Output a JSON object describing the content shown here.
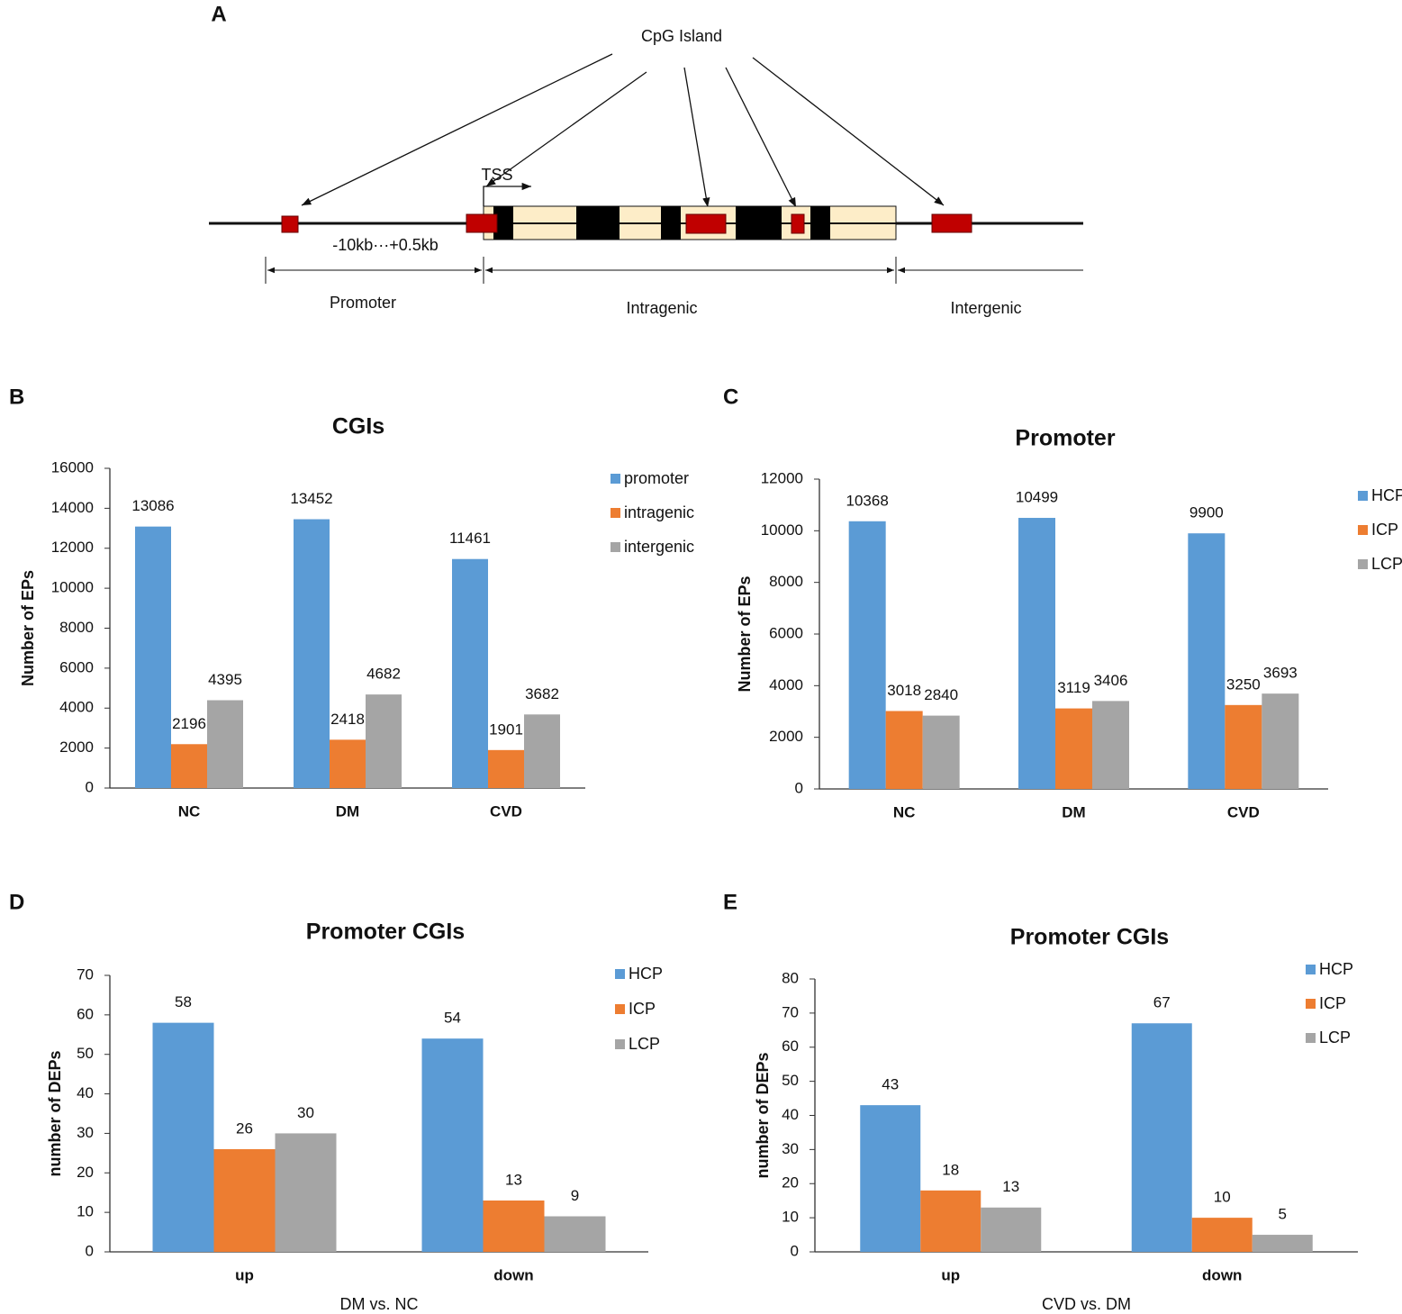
{
  "diagram": {
    "panel": "A",
    "cpg": "CpG Island",
    "tss": "TSS",
    "range": "-10kb···+0.5kb",
    "promoter": "Promoter",
    "intragenic": "Intragenic",
    "intergenic": "Intergenic"
  },
  "chart_data": [
    {
      "panel": "B",
      "type": "bar",
      "title": "CGIs",
      "ylabel": "Number of EPs",
      "categories": [
        "NC",
        "DM",
        "CVD"
      ],
      "series": [
        {
          "name": "promoter",
          "color": "#5b9bd5",
          "values": [
            13086,
            13452,
            11461
          ]
        },
        {
          "name": "intragenic",
          "color": "#ed7d31",
          "values": [
            2196,
            2418,
            1901
          ]
        },
        {
          "name": "intergenic",
          "color": "#a5a5a5",
          "values": [
            4395,
            4682,
            3682
          ]
        }
      ],
      "ylim": [
        0,
        16000
      ],
      "yticks": [
        0,
        2000,
        4000,
        6000,
        8000,
        10000,
        12000,
        14000,
        16000
      ],
      "legend": "right"
    },
    {
      "panel": "C",
      "type": "bar",
      "title": "Promoter",
      "ylabel": "Number of  EPs",
      "categories": [
        "NC",
        "DM",
        "CVD"
      ],
      "series": [
        {
          "name": "HCP",
          "color": "#5b9bd5",
          "values": [
            10368,
            10499,
            9900
          ]
        },
        {
          "name": "ICP",
          "color": "#ed7d31",
          "values": [
            3018,
            3119,
            3250
          ]
        },
        {
          "name": "LCP",
          "color": "#a5a5a5",
          "values": [
            2840,
            3406,
            3693
          ]
        }
      ],
      "ylim": [
        0,
        12000
      ],
      "yticks": [
        0,
        2000,
        4000,
        6000,
        8000,
        10000,
        12000
      ],
      "legend": "right"
    },
    {
      "panel": "D",
      "type": "bar",
      "title": "Promoter CGIs",
      "ylabel": "number of DEPs",
      "xlabel": "DM vs. NC",
      "categories": [
        "up",
        "down"
      ],
      "series": [
        {
          "name": "HCP",
          "color": "#5b9bd5",
          "values": [
            58,
            54
          ]
        },
        {
          "name": "ICP",
          "color": "#ed7d31",
          "values": [
            26,
            13
          ]
        },
        {
          "name": "LCP",
          "color": "#a5a5a5",
          "values": [
            30,
            9
          ]
        }
      ],
      "ylim": [
        0,
        70
      ],
      "yticks": [
        0,
        10,
        20,
        30,
        40,
        50,
        60,
        70
      ],
      "legend": "top right"
    },
    {
      "panel": "E",
      "type": "bar",
      "title": "Promoter CGIs",
      "ylabel": "number of DEPs",
      "xlabel": "CVD vs. DM",
      "categories": [
        "up",
        "down"
      ],
      "series": [
        {
          "name": "HCP",
          "color": "#5b9bd5",
          "values": [
            43,
            67
          ]
        },
        {
          "name": "ICP",
          "color": "#ed7d31",
          "values": [
            18,
            10
          ]
        },
        {
          "name": "LCP",
          "color": "#a5a5a5",
          "values": [
            13,
            5
          ]
        }
      ],
      "ylim": [
        0,
        80
      ],
      "yticks": [
        0,
        10,
        20,
        30,
        40,
        50,
        60,
        70,
        80
      ],
      "legend": "top right"
    }
  ]
}
